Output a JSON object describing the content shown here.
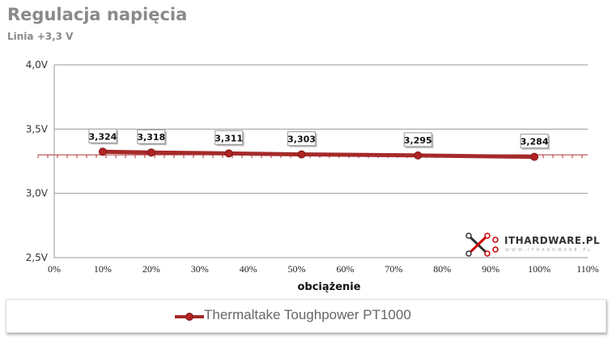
{
  "chart_data": {
    "type": "line",
    "title": "Regulacja napięcia",
    "subtitle": "Linia +3,3 V",
    "xlabel": "obciążenie",
    "ylabel": "",
    "xlim": [
      0,
      110
    ],
    "ylim": [
      2.5,
      4.0
    ],
    "x_ticks": [
      "0%",
      "10%",
      "20%",
      "30%",
      "40%",
      "50%",
      "60%",
      "70%",
      "80%",
      "90%",
      "100%",
      "110%"
    ],
    "y_ticks": [
      "2,5V",
      "3,0V",
      "3,5V",
      "4,0V"
    ],
    "grid": true,
    "reference_line": 3.3,
    "legend_position": "bottom",
    "series": [
      {
        "name": "Thermaltake Toughpower PT1000",
        "color": "#a52a2a",
        "x": [
          10,
          20,
          36,
          51,
          75,
          99
        ],
        "values": [
          3.324,
          3.318,
          3.311,
          3.303,
          3.295,
          3.284
        ],
        "labels": [
          "3,324",
          "3,318",
          "3,311",
          "3,303",
          "3,295",
          "3,284"
        ]
      }
    ]
  },
  "logo": {
    "text": "ITHARDWARE.PL",
    "sub": "WWW.ITHARDWARE.PL"
  }
}
